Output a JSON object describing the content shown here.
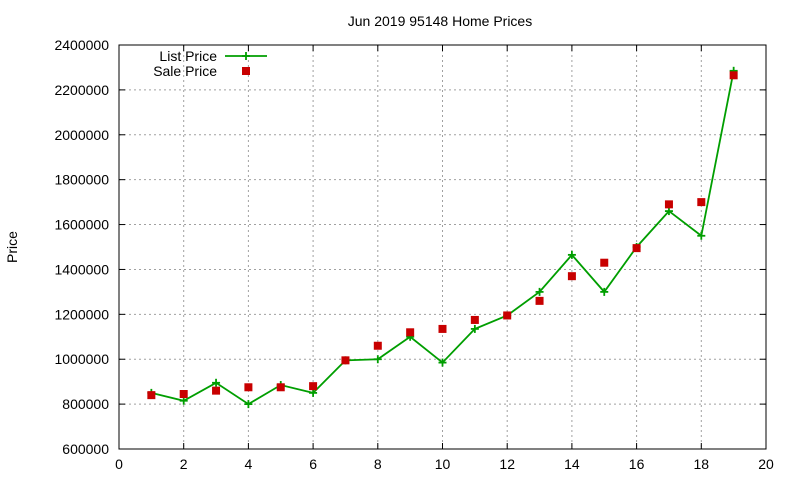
{
  "colors": {
    "list": "#009e00",
    "sale": "#c80000",
    "grid": "#a0a0a0"
  },
  "chart_data": {
    "type": "scatter",
    "title": "Jun 2019 95148 Home Prices",
    "xlabel": "",
    "ylabel": "Price",
    "xlim": [
      0,
      20
    ],
    "ylim": [
      600000,
      2400000
    ],
    "x_ticks": [
      0,
      2,
      4,
      6,
      8,
      10,
      12,
      14,
      16,
      18,
      20
    ],
    "y_ticks": [
      600000,
      800000,
      1000000,
      1200000,
      1400000,
      1600000,
      1800000,
      2000000,
      2200000,
      2400000
    ],
    "grid": true,
    "legend_position": "top-left",
    "series": [
      {
        "name": "List Price",
        "style": "line-plus",
        "x": [
          1,
          2,
          3,
          4,
          5,
          6,
          7,
          8,
          9,
          10,
          11,
          12,
          13,
          14,
          15,
          16,
          17,
          18,
          19
        ],
        "y": [
          850000,
          815000,
          895000,
          800000,
          885000,
          850000,
          995000,
          1000000,
          1100000,
          985000,
          1135000,
          1195000,
          1300000,
          1465000,
          1300000,
          1500000,
          1660000,
          1550000,
          2285000
        ]
      },
      {
        "name": "Sale Price",
        "style": "square",
        "x": [
          1,
          2,
          3,
          4,
          5,
          6,
          7,
          8,
          9,
          10,
          11,
          12,
          13,
          14,
          15,
          16,
          17,
          18,
          19
        ],
        "y": [
          840000,
          845000,
          860000,
          875000,
          875000,
          880000,
          995000,
          1060000,
          1120000,
          1135000,
          1175000,
          1195000,
          1260000,
          1370000,
          1430000,
          1495000,
          1690000,
          1700000,
          2265000
        ]
      }
    ]
  }
}
